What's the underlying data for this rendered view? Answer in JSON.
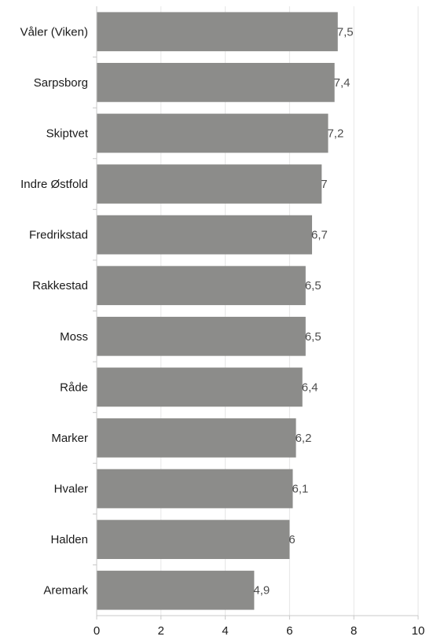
{
  "chart_data": {
    "type": "bar",
    "orientation": "horizontal",
    "categories": [
      "Våler (Viken)",
      "Sarpsborg",
      "Skiptvet",
      "Indre Østfold",
      "Fredrikstad",
      "Rakkestad",
      "Moss",
      "Råde",
      "Marker",
      "Hvaler",
      "Halden",
      "Aremark"
    ],
    "values": [
      7.5,
      7.4,
      7.2,
      7.0,
      6.7,
      6.5,
      6.5,
      6.4,
      6.2,
      6.1,
      6.0,
      4.9
    ],
    "value_labels": [
      "7,5",
      "7,4",
      "7,2",
      "7",
      "6,7",
      "6,5",
      "6,5",
      "6,4",
      "6,2",
      "6,1",
      "6",
      "4,9"
    ],
    "xlim": [
      0,
      10
    ],
    "xticks": [
      0,
      2,
      4,
      6,
      8,
      10
    ],
    "xtick_labels": [
      "0",
      "2",
      "4",
      "6",
      "8",
      "10"
    ],
    "title": "",
    "xlabel": "",
    "ylabel": "",
    "grid": "vertical",
    "legend": "none",
    "bar_color": "#8c8c8a",
    "grid_color": "#e6e6e6",
    "axis_color": "#c8c8c8"
  }
}
